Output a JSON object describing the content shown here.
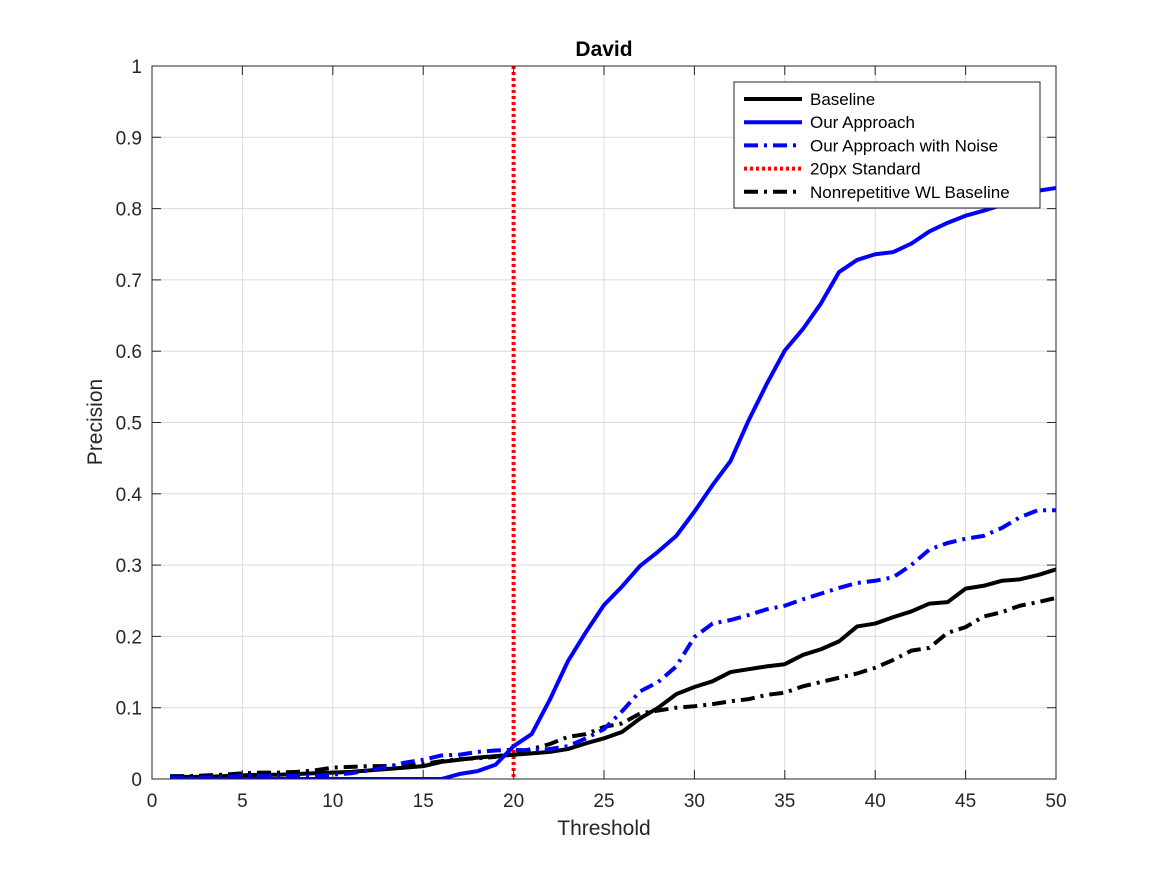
{
  "chart_data": {
    "type": "line",
    "title": "David",
    "xlabel": "Threshold",
    "ylabel": "Precision",
    "xlim": [
      0,
      50
    ],
    "ylim": [
      0,
      1
    ],
    "xticks": [
      0,
      5,
      10,
      15,
      20,
      25,
      30,
      35,
      40,
      45,
      50
    ],
    "yticks": [
      0,
      0.1,
      0.2,
      0.3,
      0.4,
      0.5,
      0.6,
      0.7,
      0.8,
      0.9,
      1
    ],
    "ytick_labels": [
      "0",
      "0.1",
      "0.2",
      "0.3",
      "0.4",
      "0.5",
      "0.6",
      "0.7",
      "0.8",
      "0.9",
      "1"
    ],
    "grid": true,
    "legend_position": "top-right",
    "x": [
      1,
      2,
      3,
      4,
      5,
      6,
      7,
      8,
      9,
      10,
      11,
      12,
      13,
      14,
      15,
      16,
      17,
      18,
      19,
      20,
      21,
      22,
      23,
      24,
      25,
      26,
      27,
      28,
      29,
      30,
      31,
      32,
      33,
      34,
      35,
      36,
      37,
      38,
      39,
      40,
      41,
      42,
      43,
      44,
      45,
      46,
      47,
      48,
      49,
      50
    ],
    "series": [
      {
        "name": "Baseline",
        "color": "#000000",
        "style": "solid",
        "values": [
          0.003,
          0.003,
          0.003,
          0.004,
          0.005,
          0.006,
          0.006,
          0.007,
          0.008,
          0.009,
          0.01,
          0.012,
          0.014,
          0.016,
          0.018,
          0.024,
          0.027,
          0.03,
          0.032,
          0.034,
          0.036,
          0.038,
          0.042,
          0.05,
          0.057,
          0.066,
          0.085,
          0.1,
          0.119,
          0.129,
          0.137,
          0.15,
          0.154,
          0.158,
          0.161,
          0.174,
          0.182,
          0.193,
          0.214,
          0.218,
          0.227,
          0.235,
          0.246,
          0.248,
          0.267,
          0.271,
          0.278,
          0.28,
          0.286,
          0.294
        ]
      },
      {
        "name": "Our Approach",
        "color": "#0000ff",
        "style": "solid",
        "values": [
          0,
          0,
          0,
          0,
          0,
          0,
          0,
          0,
          0,
          0,
          0,
          0,
          0,
          0,
          0,
          0,
          0.007,
          0.011,
          0.02,
          0.046,
          0.063,
          0.111,
          0.165,
          0.206,
          0.244,
          0.27,
          0.299,
          0.319,
          0.341,
          0.375,
          0.412,
          0.446,
          0.503,
          0.554,
          0.601,
          0.631,
          0.667,
          0.711,
          0.728,
          0.736,
          0.739,
          0.751,
          0.768,
          0.78,
          0.79,
          0.797,
          0.805,
          0.815,
          0.825,
          0.829
        ]
      },
      {
        "name": "Our Approach with Noise",
        "color": "#0000ff",
        "style": "dashdot",
        "values": [
          0.002,
          0.002,
          0.002,
          0.003,
          0.004,
          0.004,
          0.004,
          0.004,
          0.004,
          0.006,
          0.008,
          0.012,
          0.017,
          0.023,
          0.027,
          0.033,
          0.034,
          0.038,
          0.04,
          0.041,
          0.04,
          0.042,
          0.046,
          0.057,
          0.07,
          0.095,
          0.123,
          0.136,
          0.158,
          0.199,
          0.218,
          0.223,
          0.23,
          0.238,
          0.243,
          0.252,
          0.26,
          0.268,
          0.275,
          0.278,
          0.283,
          0.3,
          0.322,
          0.331,
          0.337,
          0.341,
          0.352,
          0.367,
          0.377,
          0.377
        ]
      },
      {
        "name": "20px Standard",
        "color": "#ff0000",
        "style": "dotted",
        "vertical_x": 20
      },
      {
        "name": "Nonrepetitive WL Baseline",
        "color": "#000000",
        "style": "dashdot",
        "values": [
          0.004,
          0.004,
          0.005,
          0.006,
          0.008,
          0.009,
          0.009,
          0.01,
          0.012,
          0.016,
          0.017,
          0.018,
          0.018,
          0.019,
          0.021,
          0.025,
          0.028,
          0.029,
          0.031,
          0.037,
          0.042,
          0.049,
          0.059,
          0.063,
          0.073,
          0.078,
          0.092,
          0.096,
          0.1,
          0.102,
          0.105,
          0.109,
          0.112,
          0.118,
          0.121,
          0.13,
          0.136,
          0.142,
          0.148,
          0.156,
          0.167,
          0.18,
          0.184,
          0.205,
          0.213,
          0.228,
          0.234,
          0.243,
          0.248,
          0.254
        ]
      }
    ]
  }
}
